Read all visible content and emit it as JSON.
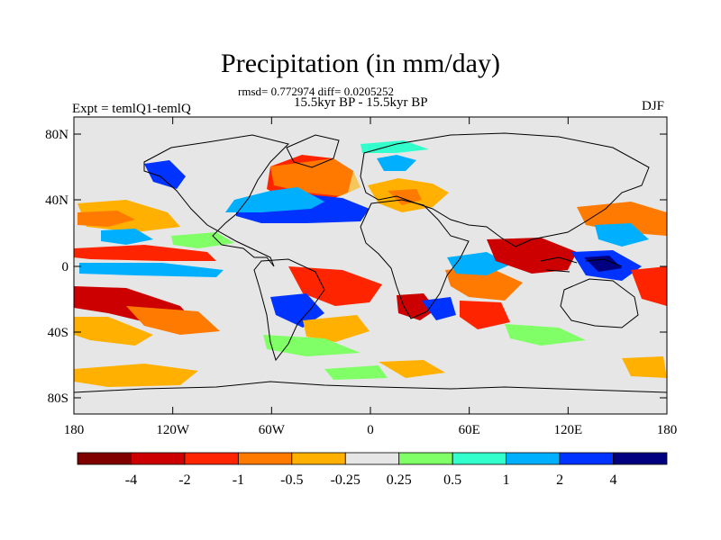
{
  "title": "Precipitation (in mm/day)",
  "stats": "rmsd= 0.772974 diff= 0.0205252",
  "period": "15.5kyr BP - 15.5kyr BP",
  "expt": "Expt = temlQ1-temlQ",
  "season": "DJF",
  "map": {
    "lat_ticks": [
      "80N",
      "40N",
      "0",
      "40S",
      "80S"
    ],
    "lon_ticks": [
      "180",
      "120W",
      "60W",
      "0",
      "60E",
      "120E",
      "180"
    ],
    "ocean_color": "#e6e6e6",
    "coast_color": "#000000"
  },
  "colorbar": {
    "labels": [
      "-4",
      "-2",
      "-1",
      "-0.5",
      "-0.25",
      "0.25",
      "0.5",
      "1",
      "2",
      "4"
    ],
    "colors": [
      "#800000",
      "#cc0000",
      "#ff2400",
      "#ff7a00",
      "#ffb000",
      "#e6e6e6",
      "#80ff66",
      "#33ffcc",
      "#00b0ff",
      "#0033ff",
      "#000080"
    ]
  }
}
